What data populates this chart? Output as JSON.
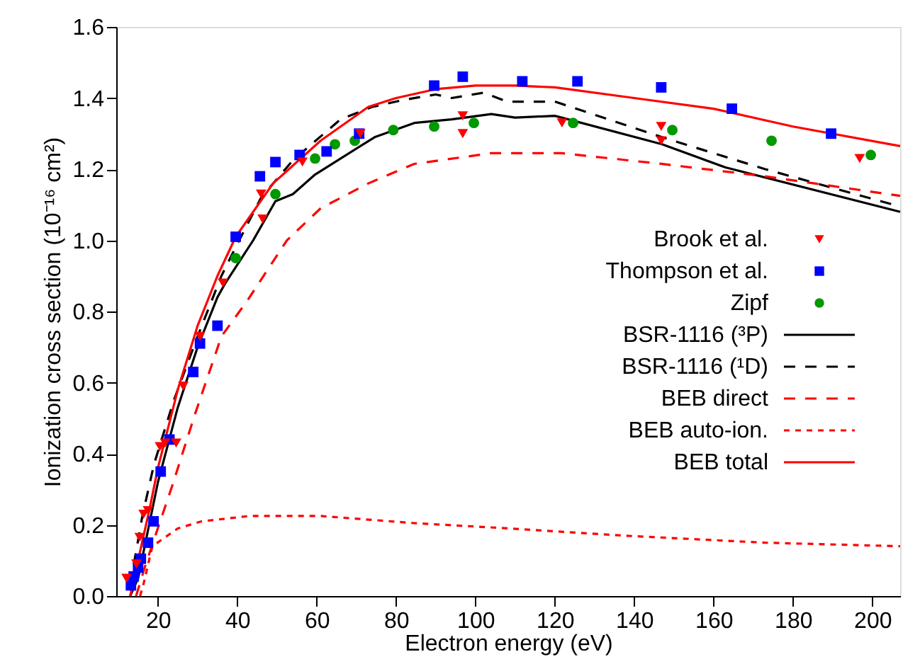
{
  "chart_data": {
    "type": "line",
    "xlabel": "Electron energy (eV)",
    "ylabel": "Ionization cross section (10⁻¹⁶ cm²)",
    "xlim": [
      9.5,
      207
    ],
    "xticks": [
      20,
      40,
      60,
      80,
      100,
      120,
      140,
      160,
      180,
      200
    ],
    "ylim": [
      0,
      1.6
    ],
    "yticks": [
      {
        "value": 0,
        "label": "0.0"
      },
      0.2,
      0.4,
      0.6,
      0.8,
      {
        "value": 1,
        "label": "1.0"
      },
      1.2,
      1.4,
      1.6
    ],
    "grid": false,
    "legend": "right",
    "series": [
      {
        "name": "Brook et al.",
        "type": "scatter",
        "marker": "triangle",
        "color": "#ff0000",
        "x": [
          12.1,
          14.6,
          15.4,
          16.4,
          17.5,
          20.5,
          21.8,
          24.6,
          26.4,
          30.6,
          36.4,
          46.4,
          46,
          56.4,
          71,
          96.8,
          96.8,
          121.8,
          146.8,
          146.8,
          196.8
        ],
        "values": [
          0.05,
          0.09,
          0.165,
          0.23,
          0.24,
          0.42,
          0.43,
          0.43,
          0.59,
          0.73,
          0.88,
          1.06,
          1.13,
          1.22,
          1.3,
          1.35,
          1.3,
          1.33,
          1.32,
          1.28,
          1.23
        ]
      },
      {
        "name": "Thompson et al.",
        "type": "scatter",
        "marker": "square",
        "color": "#0000ff",
        "x": [
          13.2,
          13.9,
          15,
          15.7,
          17.5,
          18.9,
          20.7,
          22.9,
          28.9,
          30.6,
          35,
          39.6,
          45.7,
          49.6,
          55.7,
          62.5,
          70.7,
          89.6,
          96.8,
          111.8,
          125.7,
          146.8,
          164.6,
          189.6
        ],
        "values": [
          0.03,
          0.055,
          0.08,
          0.105,
          0.15,
          0.21,
          0.35,
          0.44,
          0.63,
          0.71,
          0.76,
          1.01,
          1.18,
          1.22,
          1.24,
          1.25,
          1.3,
          1.435,
          1.46,
          1.447,
          1.447,
          1.43,
          1.37,
          1.3
        ]
      },
      {
        "name": "Zipf",
        "type": "scatter",
        "marker": "circle",
        "color": "#009900",
        "x": [
          39.6,
          49.6,
          59.6,
          64.6,
          69.6,
          79.3,
          89.6,
          99.6,
          124.6,
          149.6,
          174.6,
          199.6
        ],
        "values": [
          0.95,
          1.13,
          1.23,
          1.27,
          1.28,
          1.31,
          1.32,
          1.33,
          1.33,
          1.31,
          1.28,
          1.24
        ]
      },
      {
        "name": "BSR-1116 (³P)",
        "line_style": "solid",
        "color": "#000000",
        "x": [
          13,
          15,
          20,
          25,
          30,
          35,
          37,
          44,
          49.6,
          54,
          59.6,
          74.6,
          84.6,
          94,
          104,
          110,
          120,
          147,
          163,
          207
        ],
        "values": [
          0,
          0.05,
          0.32,
          0.53,
          0.7,
          0.84,
          0.88,
          1.0,
          1.11,
          1.13,
          1.185,
          1.29,
          1.33,
          1.34,
          1.355,
          1.345,
          1.35,
          1.27,
          1.205,
          1.08
        ]
      },
      {
        "name": "BSR-1116 (¹D)",
        "line_style": "dashed",
        "color": "#000000",
        "x": [
          13,
          16,
          19,
          24,
          30,
          36,
          40,
          46,
          54,
          66,
          74,
          82,
          90,
          94,
          102,
          108,
          113,
          120,
          147,
          173,
          207
        ],
        "values": [
          0.03,
          0.22,
          0.37,
          0.55,
          0.73,
          0.9,
          0.99,
          1.12,
          1.225,
          1.34,
          1.375,
          1.395,
          1.41,
          1.4,
          1.415,
          1.39,
          1.39,
          1.39,
          1.29,
          1.2,
          1.095
        ]
      },
      {
        "name": "BEB direct",
        "line_style": "dashed",
        "color": "#ff0000",
        "x": [
          14.5,
          16.8,
          23.6,
          29.3,
          36,
          42.5,
          52.5,
          61,
          73,
          84.6,
          104,
          121.8,
          146.8,
          173,
          207
        ],
        "values": [
          0,
          0.085,
          0.31,
          0.51,
          0.73,
          0.83,
          1.0,
          1.09,
          1.16,
          1.215,
          1.245,
          1.245,
          1.215,
          1.18,
          1.125
        ]
      },
      {
        "name": "BEB auto-ion.",
        "line_style": "dotted",
        "color": "#ff0000",
        "x": [
          15.5,
          16.4,
          18.6,
          25,
          31,
          43,
          61,
          84.6,
          108.6,
          137,
          173,
          207
        ],
        "values": [
          0,
          0.035,
          0.14,
          0.19,
          0.21,
          0.225,
          0.225,
          0.205,
          0.19,
          0.17,
          0.15,
          0.14
        ]
      },
      {
        "name": "BEB total",
        "line_style": "solid",
        "color": "#ff0000",
        "x": [
          13,
          15,
          18,
          20,
          25,
          30,
          35,
          39.6,
          49,
          61,
          73,
          80,
          90,
          100,
          110,
          120,
          140,
          160,
          180,
          207
        ],
        "values": [
          0,
          0.1,
          0.25,
          0.36,
          0.58,
          0.76,
          0.9,
          1.01,
          1.16,
          1.28,
          1.375,
          1.4,
          1.425,
          1.435,
          1.435,
          1.43,
          1.4,
          1.37,
          1.32,
          1.265
        ]
      }
    ]
  }
}
